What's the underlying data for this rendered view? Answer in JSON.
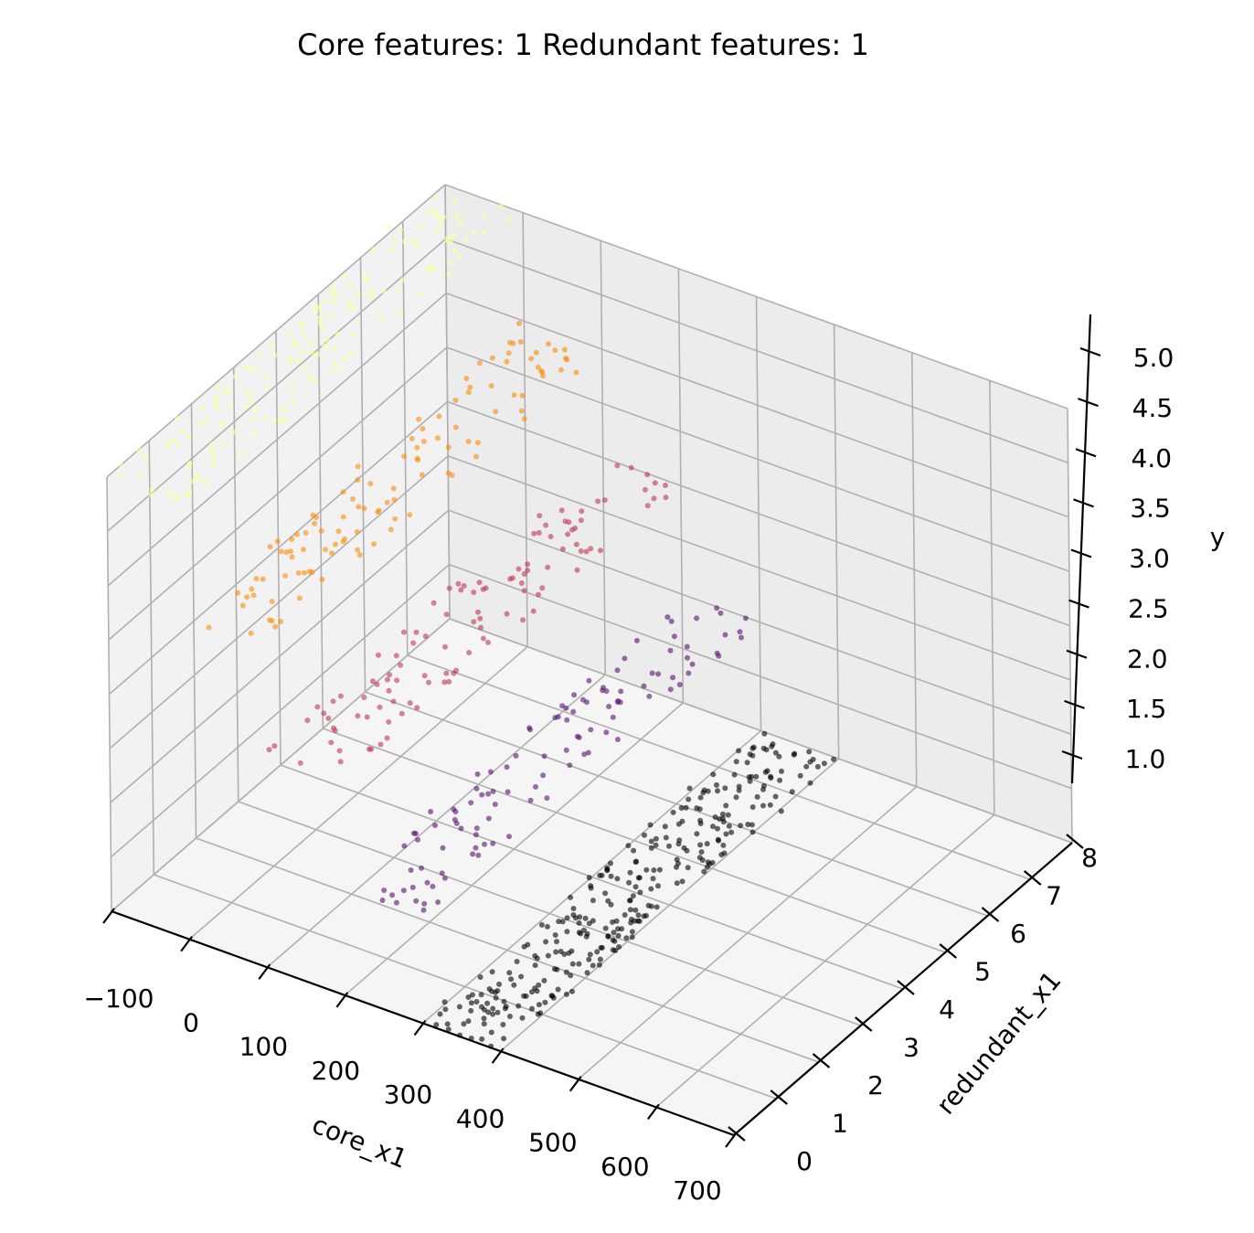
{
  "chart_data": {
    "type": "scatter",
    "projection": "3d",
    "title": "Core features: 1 Redundant features: 1",
    "xlabel": "core_x1",
    "ylabel": "redundant_x1",
    "zlabel": "y",
    "x_ticks": [
      "−100",
      "0",
      "100",
      "200",
      "300",
      "400",
      "500",
      "600",
      "700"
    ],
    "y_ticks": [
      "0",
      "1",
      "2",
      "3",
      "4",
      "5",
      "6",
      "7",
      "8"
    ],
    "z_ticks": [
      "1.0",
      "1.5",
      "2.0",
      "2.5",
      "3.0",
      "3.5",
      "4.0",
      "4.5",
      "5.0"
    ],
    "xlim": [
      -100,
      700
    ],
    "ylim": [
      0,
      8
    ],
    "zlim": [
      1,
      5
    ],
    "grid": true,
    "colormap": "inferno",
    "color_by": "y",
    "marker_size": 3,
    "alpha": 0.6,
    "series": [
      {
        "y_value": 1,
        "color": "#000004",
        "x_range": [
          300,
          400
        ],
        "redundant_range": [
          0,
          8
        ],
        "count": 300
      },
      {
        "y_value": 2,
        "color": "#57106e",
        "x_range": [
          200,
          300
        ],
        "redundant_range": [
          0,
          8
        ],
        "count": 110
      },
      {
        "y_value": 3,
        "color": "#bc3754",
        "x_range": [
          100,
          200
        ],
        "redundant_range": [
          0,
          8
        ],
        "count": 110
      },
      {
        "y_value": 4,
        "color": "#f98e09",
        "x_range": [
          0,
          100
        ],
        "redundant_range": [
          0,
          8
        ],
        "count": 110
      },
      {
        "y_value": 5,
        "color": "#fcffa4",
        "x_range": [
          -100,
          0
        ],
        "redundant_range": [
          0,
          8
        ],
        "count": 160
      }
    ]
  }
}
